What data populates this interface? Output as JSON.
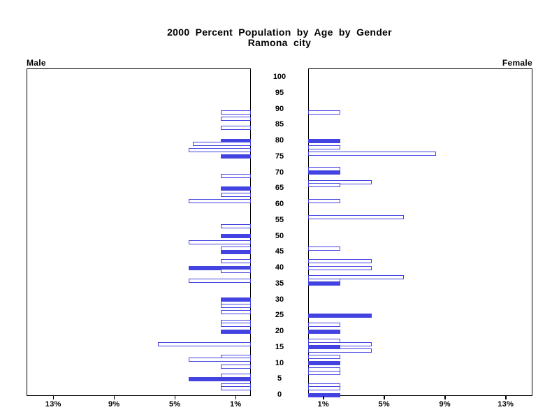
{
  "title": {
    "line1": "2000 Percent Population by Age by Gender",
    "line2": "Ramona city"
  },
  "panel_labels": {
    "left": "Male",
    "right": "Female"
  },
  "colors": {
    "bar_blue": "#4343e2",
    "axis_black": "#000000",
    "background": "#ffffff",
    "hollow_bar_fill": "#ffffff"
  },
  "chart_data": {
    "type": "bar",
    "subtype": "population-pyramid",
    "title": "2000 Percent Population by Age by Gender",
    "subtitle": "Ramona city",
    "xlabel_unit": "% of population",
    "ylabel_unit": "age in years",
    "age_axis": {
      "min": 0,
      "max": 100,
      "step": 5,
      "tick_labels": [
        "0",
        "5",
        "10",
        "15",
        "20",
        "25",
        "30",
        "35",
        "40",
        "45",
        "50",
        "55",
        "60",
        "65",
        "70",
        "75",
        "80",
        "85",
        "90",
        "95",
        "100"
      ]
    },
    "pct_axis": {
      "min": 0,
      "max": 14.7,
      "ticks": [
        1,
        5,
        9,
        13
      ],
      "tick_labels": [
        "1%",
        "5%",
        "9%",
        "13%"
      ]
    },
    "grid": false,
    "legend": "none",
    "bar_style_note": "filled bars are solid blue; others are white with blue outline",
    "series": [
      {
        "name": "Male",
        "direction": "left",
        "points": [
          {
            "age": 89,
            "pct": 2.0,
            "filled": false
          },
          {
            "age": 87,
            "pct": 2.0,
            "filled": false
          },
          {
            "age": 84,
            "pct": 2.0,
            "filled": false
          },
          {
            "age": 80,
            "pct": 2.0,
            "filled": true
          },
          {
            "age": 79,
            "pct": 3.8,
            "filled": false
          },
          {
            "age": 77,
            "pct": 4.1,
            "filled": false
          },
          {
            "age": 75,
            "pct": 2.0,
            "filled": true
          },
          {
            "age": 69,
            "pct": 2.0,
            "filled": false
          },
          {
            "age": 65,
            "pct": 2.0,
            "filled": true
          },
          {
            "age": 63,
            "pct": 2.0,
            "filled": false
          },
          {
            "age": 61,
            "pct": 4.1,
            "filled": false
          },
          {
            "age": 53,
            "pct": 2.0,
            "filled": false
          },
          {
            "age": 50,
            "pct": 2.0,
            "filled": true
          },
          {
            "age": 48,
            "pct": 4.1,
            "filled": false
          },
          {
            "age": 46,
            "pct": 2.0,
            "filled": false
          },
          {
            "age": 45,
            "pct": 2.0,
            "filled": true
          },
          {
            "age": 42,
            "pct": 2.0,
            "filled": false
          },
          {
            "age": 40,
            "pct": 4.1,
            "filled": true
          },
          {
            "age": 39,
            "pct": 2.0,
            "filled": false
          },
          {
            "age": 36,
            "pct": 4.1,
            "filled": false
          },
          {
            "age": 30,
            "pct": 2.0,
            "filled": true
          },
          {
            "age": 29,
            "pct": 2.0,
            "filled": false
          },
          {
            "age": 28,
            "pct": 2.0,
            "filled": false
          },
          {
            "age": 26,
            "pct": 2.0,
            "filled": false
          },
          {
            "age": 23,
            "pct": 2.0,
            "filled": false
          },
          {
            "age": 22,
            "pct": 2.0,
            "filled": false
          },
          {
            "age": 20,
            "pct": 2.0,
            "filled": true
          },
          {
            "age": 16,
            "pct": 6.1,
            "filled": false
          },
          {
            "age": 12,
            "pct": 2.0,
            "filled": false
          },
          {
            "age": 11,
            "pct": 4.1,
            "filled": false
          },
          {
            "age": 9,
            "pct": 2.0,
            "filled": false
          },
          {
            "age": 6,
            "pct": 2.0,
            "filled": false
          },
          {
            "age": 5,
            "pct": 4.1,
            "filled": true
          },
          {
            "age": 3,
            "pct": 2.0,
            "filled": false
          },
          {
            "age": 2,
            "pct": 2.0,
            "filled": false
          }
        ]
      },
      {
        "name": "Female",
        "direction": "right",
        "points": [
          {
            "age": 89,
            "pct": 2.1,
            "filled": false
          },
          {
            "age": 80,
            "pct": 2.1,
            "filled": true
          },
          {
            "age": 78,
            "pct": 2.1,
            "filled": false
          },
          {
            "age": 76,
            "pct": 8.4,
            "filled": false
          },
          {
            "age": 71,
            "pct": 2.1,
            "filled": false
          },
          {
            "age": 70,
            "pct": 2.1,
            "filled": true
          },
          {
            "age": 67,
            "pct": 4.2,
            "filled": false
          },
          {
            "age": 66,
            "pct": 2.1,
            "filled": false
          },
          {
            "age": 61,
            "pct": 2.1,
            "filled": false
          },
          {
            "age": 56,
            "pct": 6.3,
            "filled": false
          },
          {
            "age": 46,
            "pct": 2.1,
            "filled": false
          },
          {
            "age": 42,
            "pct": 4.2,
            "filled": false
          },
          {
            "age": 40,
            "pct": 4.2,
            "filled": false
          },
          {
            "age": 37,
            "pct": 6.3,
            "filled": false
          },
          {
            "age": 36,
            "pct": 2.1,
            "filled": false
          },
          {
            "age": 35,
            "pct": 2.1,
            "filled": true
          },
          {
            "age": 25,
            "pct": 4.2,
            "filled": true
          },
          {
            "age": 22,
            "pct": 2.1,
            "filled": false
          },
          {
            "age": 20,
            "pct": 2.1,
            "filled": true
          },
          {
            "age": 17,
            "pct": 2.1,
            "filled": false
          },
          {
            "age": 16,
            "pct": 4.2,
            "filled": false
          },
          {
            "age": 15,
            "pct": 2.1,
            "filled": true
          },
          {
            "age": 14,
            "pct": 4.2,
            "filled": false
          },
          {
            "age": 12,
            "pct": 2.1,
            "filled": false
          },
          {
            "age": 10,
            "pct": 2.1,
            "filled": true
          },
          {
            "age": 8,
            "pct": 2.1,
            "filled": false
          },
          {
            "age": 7,
            "pct": 2.1,
            "filled": false
          },
          {
            "age": 3,
            "pct": 2.1,
            "filled": false
          },
          {
            "age": 2,
            "pct": 2.1,
            "filled": false
          },
          {
            "age": 0,
            "pct": 2.1,
            "filled": true
          }
        ]
      }
    ]
  }
}
